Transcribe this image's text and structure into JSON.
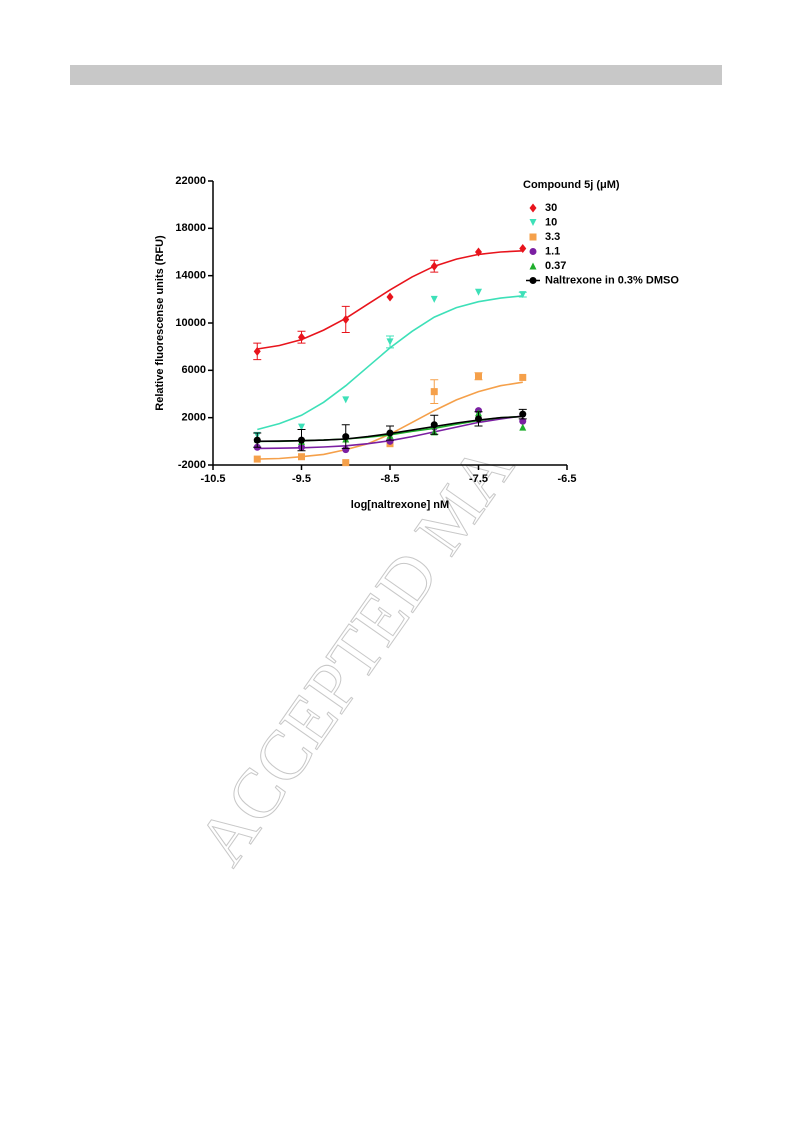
{
  "watermark": "ACCEPTED MA",
  "chart_data": {
    "type": "scatter",
    "xlabel": "log[naltrexone] nM",
    "ylabel": "Relative fluorescense units (RFU)",
    "legend_title": "Compound 5j (μM)",
    "legend": "upper right",
    "xlim": [
      -10.5,
      -6.5
    ],
    "xticks": [
      -10.5,
      -9.5,
      -8.5,
      -7.5,
      -6.5
    ],
    "ylim": [
      -2000,
      22000
    ],
    "yticks": [
      -2000,
      2000,
      6000,
      10000,
      14000,
      18000,
      22000
    ],
    "x": [
      -10,
      -9.5,
      -9,
      -8.5,
      -8,
      -7.5,
      -7
    ],
    "curve_x": [
      -10,
      -9.75,
      -9.5,
      -9.25,
      -9,
      -8.75,
      -8.5,
      -8.25,
      -8,
      -7.75,
      -7.5,
      -7.25,
      -7
    ],
    "series": [
      {
        "name": "30",
        "color": "#e8141c",
        "marker": "diamond",
        "values": [
          7600,
          8800,
          10300,
          12200,
          14800,
          16000,
          16300
        ],
        "errors": [
          700,
          500,
          1100,
          null,
          500,
          null,
          null
        ],
        "curve": [
          7800,
          8100,
          8600,
          9400,
          10400,
          11600,
          12800,
          13900,
          14800,
          15400,
          15800,
          16000,
          16100
        ]
      },
      {
        "name": "10",
        "color": "#3de0b8",
        "marker": "triangle-down",
        "values": [
          500,
          1200,
          3500,
          8400,
          12000,
          12600,
          12400
        ],
        "errors": [
          null,
          null,
          null,
          500,
          null,
          null,
          200
        ],
        "curve": [
          1000,
          1500,
          2200,
          3300,
          4700,
          6300,
          7900,
          9300,
          10500,
          11300,
          11800,
          12100,
          12300
        ]
      },
      {
        "name": "3.3",
        "color": "#f5a04a",
        "marker": "square",
        "values": [
          -1500,
          -1300,
          -1800,
          -200,
          4200,
          5500,
          5400
        ],
        "errors": [
          null,
          null,
          null,
          null,
          1000,
          300,
          null
        ],
        "curve": [
          -1500,
          -1450,
          -1300,
          -1100,
          -700,
          -200,
          600,
          1600,
          2600,
          3500,
          4200,
          4700,
          5000
        ]
      },
      {
        "name": "1.1",
        "color": "#7b1fa2",
        "marker": "circle",
        "values": [
          -500,
          -500,
          -700,
          0,
          1200,
          2600,
          1700
        ],
        "errors": [
          null,
          null,
          null,
          null,
          null,
          null,
          null
        ],
        "curve": [
          -600,
          -580,
          -550,
          -480,
          -380,
          -200,
          50,
          400,
          800,
          1200,
          1600,
          1900,
          2150
        ]
      },
      {
        "name": "0.37",
        "color": "#1fae2c",
        "marker": "triangle-up",
        "values": [
          200,
          0,
          200,
          500,
          800,
          2400,
          1200
        ],
        "errors": [
          null,
          null,
          null,
          null,
          null,
          null,
          null
        ],
        "curve": [
          0,
          0,
          50,
          100,
          200,
          350,
          550,
          850,
          1100,
          1450,
          1750,
          2000,
          2100
        ]
      },
      {
        "name": "Naltrexone in 0.3% DMSO",
        "color": "#000000",
        "marker": "circle-line",
        "values": [
          100,
          100,
          400,
          700,
          1400,
          1900,
          2300
        ],
        "errors": [
          600,
          900,
          1000,
          600,
          800,
          600,
          400
        ],
        "curve": [
          0,
          20,
          50,
          100,
          200,
          400,
          650,
          950,
          1250,
          1550,
          1800,
          2000,
          2100
        ]
      }
    ]
  }
}
